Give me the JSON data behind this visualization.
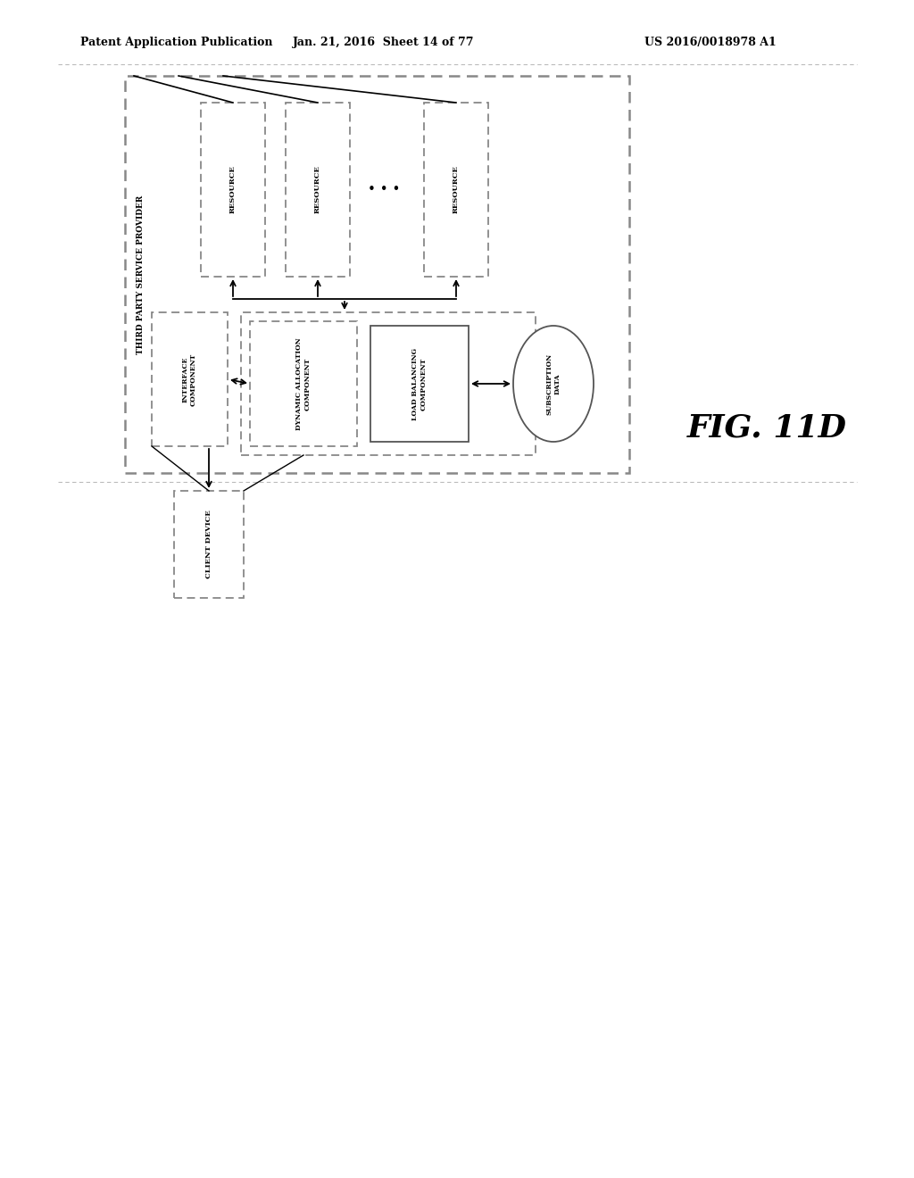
{
  "bg_color": "#ffffff",
  "header_left": "Patent Application Publication",
  "header_center": "Jan. 21, 2016  Sheet 14 of 77",
  "header_right": "US 2016/0018978 A1",
  "fig_label": "FIG. 11D",
  "outer_box_label": "THIRD PARTY SERVICE PROVIDER",
  "text_color": "#000000",
  "font_size_header": 9,
  "font_size_label": 6.5,
  "font_size_fig": 24,
  "gray_line_color": "#aaaaaa"
}
